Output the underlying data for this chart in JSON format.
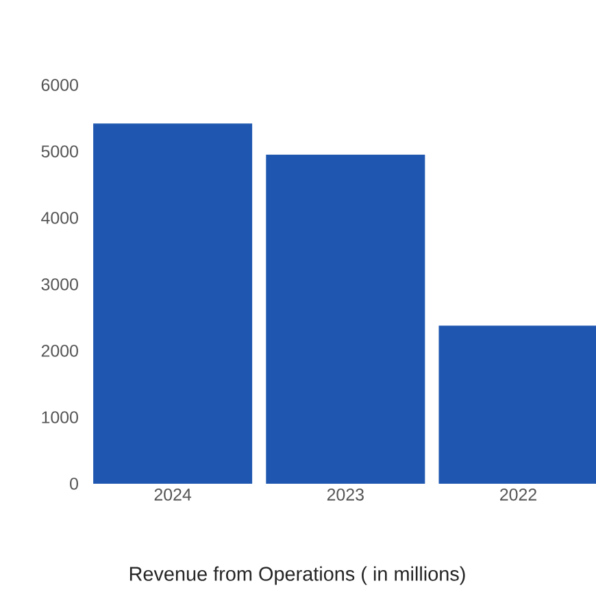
{
  "chart_data": {
    "type": "bar",
    "title": "Revenue from Operations ( in millions)",
    "categories": [
      "2024",
      "2023",
      "2022"
    ],
    "values": [
      5420,
      4950,
      2380
    ],
    "color": "#1f57b0",
    "ylim": [
      0,
      6000
    ],
    "yticks": [
      0,
      1000,
      2000,
      3000,
      4000,
      5000,
      6000
    ],
    "grid": false
  }
}
